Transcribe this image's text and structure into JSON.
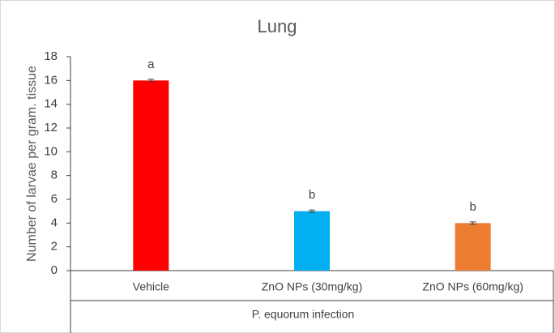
{
  "chart_data": {
    "type": "bar",
    "title": "Lung",
    "y_label": "Number of larvae per gram. tissue",
    "group_label": "P. equorum  infection",
    "categories": [
      "Vehicle",
      "ZnO NPs (30mg/kg)",
      "ZnO NPs (60mg/kg)"
    ],
    "values": [
      16,
      5,
      4
    ],
    "errors": [
      0.1,
      0.1,
      0.1
    ],
    "annotations": [
      "a",
      "b",
      "b"
    ],
    "colors": [
      "#ff0000",
      "#00b0f0",
      "#ed7d31"
    ],
    "ylim": [
      0,
      18
    ],
    "yticks": [
      0,
      2,
      4,
      6,
      8,
      10,
      12,
      14,
      16,
      18
    ],
    "grid": false
  }
}
